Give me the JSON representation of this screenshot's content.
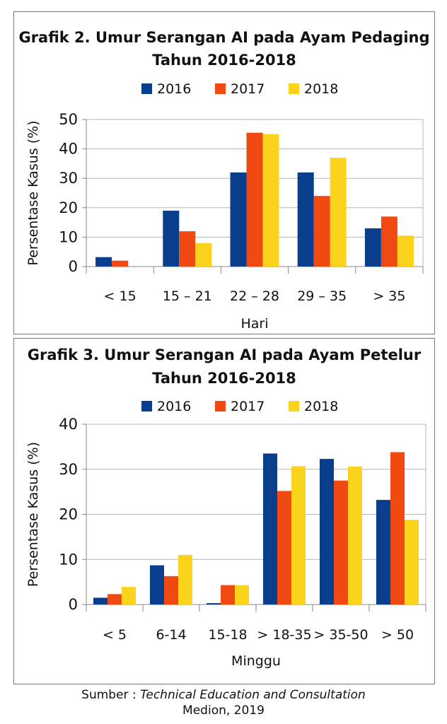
{
  "colors": {
    "2016": "#083e8c",
    "2017": "#f04a12",
    "2018": "#fcd31c"
  },
  "chart_data": [
    {
      "type": "bar",
      "title_line1": "Grafik 2. Umur Serangan AI pada Ayam Pedaging",
      "title_line2": "Tahun 2016-2018",
      "xlabel": "Hari",
      "ylabel": "Persentase Kasus (%)",
      "ylim": [
        0,
        50
      ],
      "yticks": [
        "0",
        "10",
        "20",
        "30",
        "40",
        "50"
      ],
      "grid": true,
      "legend": "top",
      "categories": [
        "< 15",
        "15 – 21",
        "22 – 28",
        "29 – 35",
        "> 35"
      ],
      "series": [
        {
          "name": "2016",
          "values": [
            3.2,
            19,
            32,
            32,
            13
          ]
        },
        {
          "name": "2017",
          "values": [
            2,
            12,
            45.5,
            24,
            17
          ]
        },
        {
          "name": "2018",
          "values": [
            0,
            8,
            45,
            37,
            10.5
          ]
        }
      ]
    },
    {
      "type": "bar",
      "title_line1": "Grafik 3. Umur Serangan AI pada Ayam Petelur",
      "title_line2": "Tahun 2016-2018",
      "xlabel": "Minggu",
      "ylabel": "Persentase Kasus (%)",
      "ylim": [
        0,
        40
      ],
      "yticks": [
        "0",
        "10",
        "20",
        "30",
        "40"
      ],
      "grid": true,
      "legend": "top",
      "categories": [
        "< 5",
        "6-14",
        "15-18",
        "> 18-35",
        "> 35-50",
        "> 50"
      ],
      "series": [
        {
          "name": "2016",
          "values": [
            1.5,
            8.7,
            0.3,
            33.5,
            32.3,
            23.2
          ]
        },
        {
          "name": "2017",
          "values": [
            2.3,
            6.3,
            4.3,
            25.2,
            27.5,
            33.8
          ]
        },
        {
          "name": "2018",
          "values": [
            3.9,
            11,
            4.3,
            30.7,
            30.6,
            18.8
          ]
        }
      ]
    }
  ],
  "source": {
    "prefix": "Sumber : ",
    "italic": "Technical Education and Consultation",
    "line2": "Medion, 2019"
  }
}
